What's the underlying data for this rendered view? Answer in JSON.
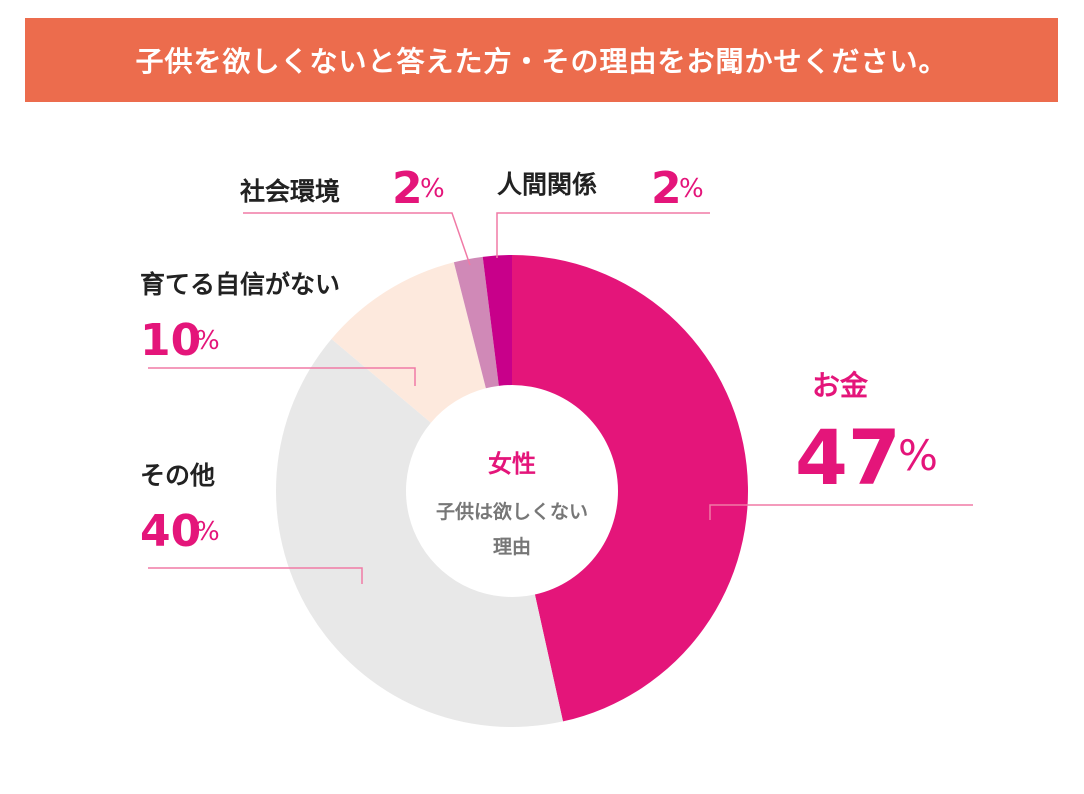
{
  "title": "子供を欲しくないと答えた方・その理由をお聞かせください。",
  "colors": {
    "title_bar": "#ec6c4d",
    "accent": "#e4157a",
    "leader": "#f07aa6",
    "label_text": "#222222",
    "center_text": "#777777"
  },
  "chart_data": {
    "type": "pie",
    "donut": true,
    "center_label": {
      "line1": "女性",
      "line2": "子供は欲しくない",
      "line3": "理由"
    },
    "percent_sign": "%",
    "slices": [
      {
        "label": "お金",
        "value": 47,
        "color": "#e4157a"
      },
      {
        "label": "その他",
        "value": 40,
        "color": "#e8e8e8"
      },
      {
        "label": "育てる自信がない",
        "value": 10,
        "color": "#fde9dd"
      },
      {
        "label": "社会環境",
        "value": 2,
        "color": "#d089b7"
      },
      {
        "label": "人間関係",
        "value": 2,
        "color": "#c8008a"
      }
    ]
  }
}
